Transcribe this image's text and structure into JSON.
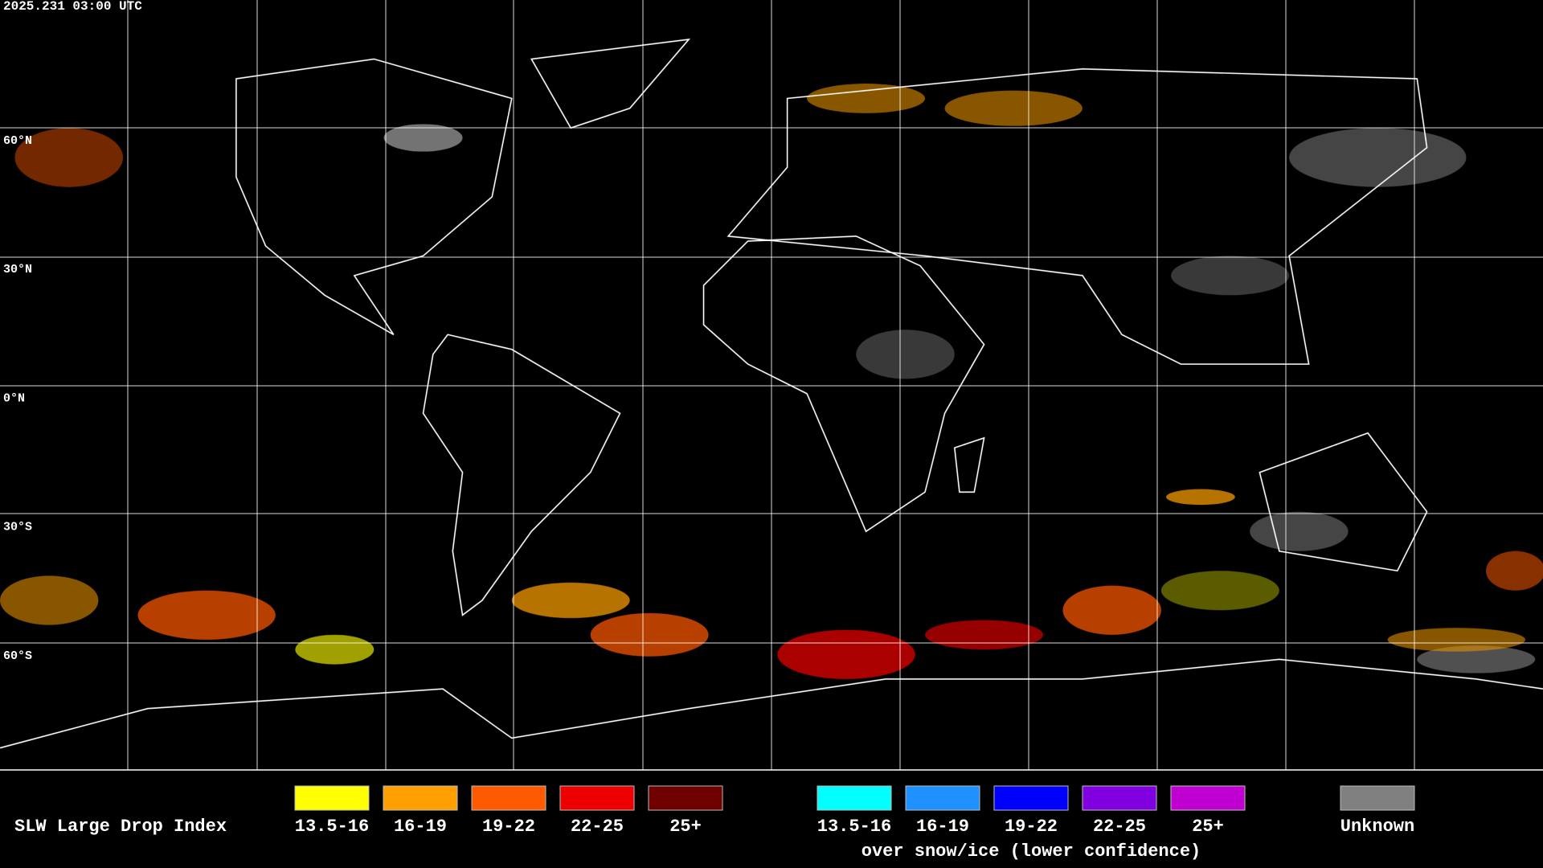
{
  "timestamp": "2025.231 03:00 UTC",
  "latitude_labels": [
    "60°N",
    "30°N",
    "0°N",
    "30°S",
    "60°S"
  ],
  "legend": {
    "title": "SLW Large Drop Index",
    "items": [
      {
        "label": "13.5-16",
        "color": "#ffff00"
      },
      {
        "label": "16-19",
        "color": "#ffa000"
      },
      {
        "label": "19-22",
        "color": "#ff5a00"
      },
      {
        "label": "22-25",
        "color": "#ee0000"
      },
      {
        "label": "25+",
        "color": "#6e0000"
      }
    ],
    "snow_items": [
      {
        "label": "13.5-16",
        "color": "#00ffff"
      },
      {
        "label": "16-19",
        "color": "#1e90ff"
      },
      {
        "label": "19-22",
        "color": "#0000ff"
      },
      {
        "label": "22-25",
        "color": "#8000e0"
      },
      {
        "label": "25+",
        "color": "#c000d0"
      }
    ],
    "snow_caption": "over snow/ice (lower confidence)",
    "unknown": {
      "label": "Unknown",
      "color": "#808080"
    }
  }
}
